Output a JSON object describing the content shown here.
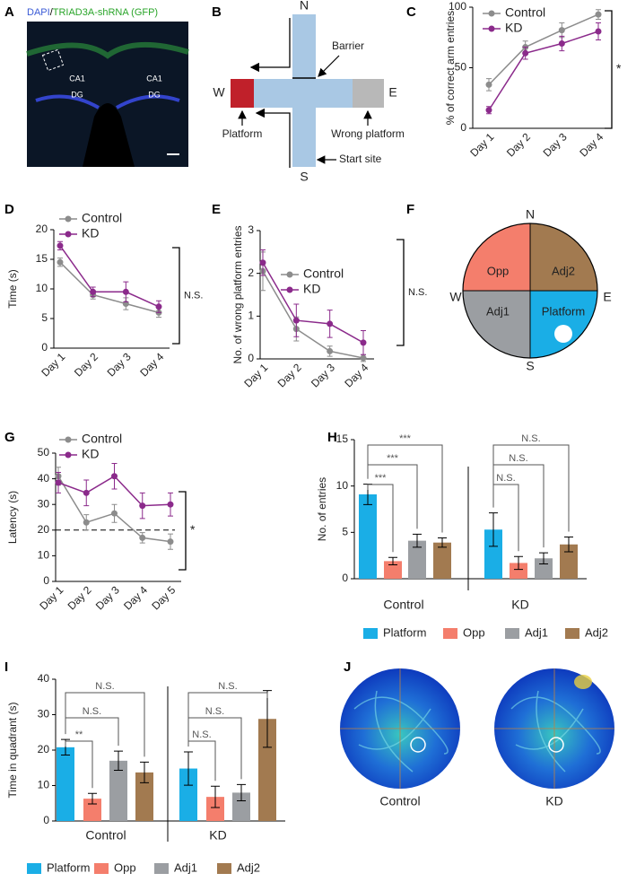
{
  "chart_data": [
    {
      "panel": "C",
      "type": "line",
      "ylabel": "% of correct arm entries",
      "categories": [
        "Day 1",
        "Day 2",
        "Day 3",
        "Day 4"
      ],
      "series": [
        {
          "name": "Control",
          "color": "#8c8c8c",
          "values": [
            36,
            67,
            81,
            94
          ],
          "errors": [
            5,
            5,
            6,
            4
          ]
        },
        {
          "name": "KD",
          "color": "#8b2a8b",
          "values": [
            15,
            62,
            70,
            80
          ],
          "errors": [
            3,
            5,
            6,
            7
          ]
        }
      ],
      "ylim": [
        0,
        100
      ],
      "yticks": [
        0,
        50,
        100
      ],
      "significance": "*"
    },
    {
      "panel": "D",
      "type": "line",
      "ylabel": "Time (s)",
      "categories": [
        "Day 1",
        "Day 2",
        "Day 3",
        "Day 4"
      ],
      "series": [
        {
          "name": "Control",
          "color": "#8c8c8c",
          "values": [
            14.5,
            9,
            7.5,
            6
          ],
          "errors": [
            0.7,
            0.7,
            1,
            0.8
          ]
        },
        {
          "name": "KD",
          "color": "#8b2a8b",
          "values": [
            17.3,
            9.5,
            9.5,
            7
          ],
          "errors": [
            0.7,
            0.8,
            1.7,
            1
          ]
        }
      ],
      "ylim": [
        0,
        20
      ],
      "yticks": [
        0,
        5,
        10,
        15,
        20
      ],
      "significance": "N.S."
    },
    {
      "panel": "E",
      "type": "line",
      "ylabel": "No. of wrong platform entries",
      "categories": [
        "Day 1",
        "Day 2",
        "Day 3",
        "Day 4"
      ],
      "series": [
        {
          "name": "Control",
          "color": "#8c8c8c",
          "values": [
            2.05,
            0.7,
            0.18,
            0.02
          ],
          "errors": [
            0.45,
            0.28,
            0.12,
            0.08
          ]
        },
        {
          "name": "KD",
          "color": "#8b2a8b",
          "values": [
            2.25,
            0.9,
            0.82,
            0.38
          ],
          "errors": [
            0.3,
            0.38,
            0.32,
            0.28
          ]
        }
      ],
      "ylim": [
        0,
        3
      ],
      "yticks": [
        0,
        1,
        2,
        3
      ],
      "significance": "N.S."
    },
    {
      "panel": "G",
      "type": "line",
      "ylabel": "Latency (s)",
      "categories": [
        "Day 1",
        "Day 2",
        "Day 3",
        "Day 4",
        "Day 5"
      ],
      "series": [
        {
          "name": "Control",
          "color": "#8c8c8c",
          "values": [
            41,
            23,
            26.5,
            17,
            15.5
          ],
          "errors": [
            3.5,
            3,
            3.5,
            2,
            3
          ]
        },
        {
          "name": "KD",
          "color": "#8b2a8b",
          "values": [
            38.5,
            34.5,
            41,
            29.5,
            30
          ],
          "errors": [
            4,
            5,
            5,
            5,
            4.5
          ]
        }
      ],
      "ylim": [
        0,
        50
      ],
      "yticks": [
        0,
        10,
        20,
        30,
        40,
        50
      ],
      "reference_line": 20,
      "significance": "*"
    },
    {
      "panel": "H",
      "type": "bar",
      "ylabel": "No. of entries",
      "categories": [
        "Control",
        "KD"
      ],
      "series": [
        {
          "name": "Platform",
          "color": "#1aaee6",
          "values": [
            9.1,
            5.3
          ],
          "errors": [
            1.1,
            1.8
          ]
        },
        {
          "name": "Opp",
          "color": "#f47e6c",
          "values": [
            1.9,
            1.7
          ],
          "errors": [
            0.4,
            0.7
          ]
        },
        {
          "name": "Adj1",
          "color": "#9b9ea2",
          "values": [
            4.1,
            2.2
          ],
          "errors": [
            0.7,
            0.6
          ]
        },
        {
          "name": "Adj2",
          "color": "#a27a50",
          "values": [
            3.9,
            3.7
          ],
          "errors": [
            0.5,
            0.8
          ]
        }
      ],
      "ylim": [
        0,
        15
      ],
      "yticks": [
        0,
        5,
        10,
        15
      ],
      "significance": [
        [
          "***",
          "***",
          "***"
        ],
        [
          "N.S.",
          "N.S.",
          "N.S."
        ]
      ]
    },
    {
      "panel": "I",
      "type": "bar",
      "ylabel": "Time in quadrant (s)",
      "categories": [
        "Control",
        "KD"
      ],
      "series": [
        {
          "name": "Platform",
          "color": "#1aaee6",
          "values": [
            20.8,
            14.8
          ],
          "errors": [
            2.2,
            4.7
          ]
        },
        {
          "name": "Opp",
          "color": "#f47e6c",
          "values": [
            6.3,
            6.8
          ],
          "errors": [
            1.5,
            3
          ]
        },
        {
          "name": "Adj1",
          "color": "#9b9ea2",
          "values": [
            17,
            8
          ],
          "errors": [
            2.7,
            2.3
          ]
        },
        {
          "name": "Adj2",
          "color": "#a27a50",
          "values": [
            13.7,
            28.8
          ],
          "errors": [
            2.9,
            8
          ]
        }
      ],
      "ylim": [
        0,
        40
      ],
      "yticks": [
        0,
        10,
        20,
        30,
        40
      ],
      "significance": [
        [
          "**",
          "N.S.",
          "N.S."
        ],
        [
          "N.S.",
          "N.S.",
          "N.S."
        ]
      ]
    }
  ],
  "panel_a": {
    "label": "A",
    "title_parts": [
      "DAPI",
      "/",
      "TRIAD3A-shRNA (GFP)"
    ],
    "regions": [
      "CA1",
      "DG",
      "CA1",
      "DG"
    ]
  },
  "panel_b": {
    "label": "B",
    "directions": [
      "N",
      "S",
      "W",
      "E"
    ],
    "callouts": [
      "Barrier",
      "Platform",
      "Wrong platform",
      "Start site"
    ]
  },
  "panel_f": {
    "label": "F",
    "directions": [
      "N",
      "S",
      "W",
      "E"
    ],
    "quadrants": [
      "Opp",
      "Adj2",
      "Adj1",
      "Platform"
    ]
  },
  "panel_j": {
    "label": "J",
    "conditions": [
      "Control",
      "KD"
    ]
  }
}
